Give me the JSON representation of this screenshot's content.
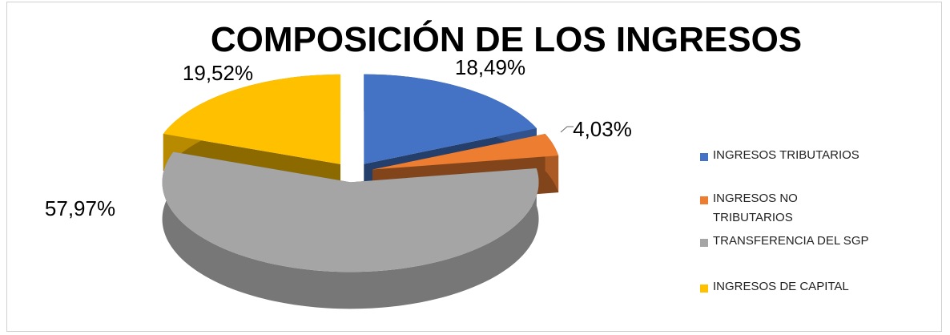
{
  "chart_data": {
    "type": "pie",
    "title": "COMPOSICIÓN DE LOS INGRESOS",
    "categories": [
      "INGRESOS TRIBUTARIOS",
      "INGRESOS NO TRIBUTARIOS",
      "TRANSFERENCIA DEL SGP",
      "INGRESOS DE CAPITAL"
    ],
    "values": [
      18.49,
      4.03,
      57.97,
      19.52
    ],
    "value_labels": [
      "18,49%",
      "4,03%",
      "57,97%",
      "19,52%"
    ],
    "colors": [
      "#4472c4",
      "#ed7d31",
      "#a5a5a5",
      "#ffc000"
    ]
  }
}
